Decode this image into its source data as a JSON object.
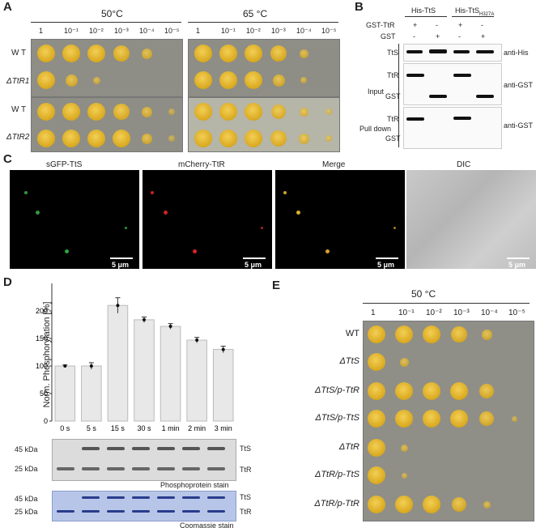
{
  "panel_labels": {
    "A": "A",
    "B": "B",
    "C": "C",
    "D": "D",
    "E": "E"
  },
  "panelA": {
    "temp_left": "50°C",
    "temp_right": "65 °C",
    "dilutions": [
      "1",
      "10⁻¹",
      "10⁻²",
      "10⁻³",
      "10⁻⁴",
      "10⁻⁵"
    ],
    "rows": [
      "W T",
      "ΔTtR1",
      "W T",
      "ΔTtR2"
    ]
  },
  "panelB": {
    "col_groups": [
      "His-TtS",
      "His-TtS"
    ],
    "col_group2_sub": "H327A",
    "gst_ttr_label": "GST-TtR",
    "gst_label": "GST",
    "gst_ttr_signs": [
      "+",
      "-",
      "+",
      "-"
    ],
    "gst_signs": [
      "-",
      "+",
      "-",
      "+"
    ],
    "input_label": "Input",
    "pulldown_label": "Pull down",
    "lane_labels": [
      "TtS",
      "TtR",
      "GST",
      "TtR",
      "GST"
    ],
    "antibodies": [
      "anti-His",
      "anti-GST",
      "anti-GST"
    ]
  },
  "panelC": {
    "titles": [
      "sGFP-TtS",
      "mCherry-TtR",
      "Merge",
      "DIC"
    ],
    "scale": "5 μm"
  },
  "panelD": {
    "ylabel": "Norm. Phosphorylation [%]",
    "yticks": [
      "0",
      "50",
      "100",
      "150",
      "200"
    ],
    "xticks": [
      "0 s",
      "5 s",
      "15 s",
      "30 s",
      "1 min",
      "2 min",
      "3 min"
    ],
    "markers": [
      "45 kDa",
      "25 kDa"
    ],
    "bands": [
      "TtS",
      "TtR"
    ],
    "stain1": "Phosphoprotein stain",
    "stain2": "Coomassie stain"
  },
  "chart_data": {
    "type": "bar",
    "categories": [
      "0 s",
      "5 s",
      "15 s",
      "30 s",
      "1 min",
      "2 min",
      "3 min"
    ],
    "values": [
      100,
      100,
      210,
      184,
      172,
      147,
      130
    ],
    "ylabel": "Norm. Phosphorylation [%]",
    "ylim": [
      0,
      250
    ]
  },
  "panelE": {
    "temp": "50 °C",
    "dilutions": [
      "1",
      "10⁻¹",
      "10⁻²",
      "10⁻³",
      "10⁻⁴",
      "10⁻⁵"
    ],
    "rows": [
      "WT",
      "ΔTtS",
      "ΔTtS/p-TtR",
      "ΔTtS/p-TtS",
      "ΔTtR",
      "ΔTtR/p-TtS",
      "ΔTtR/p-TtR"
    ]
  }
}
